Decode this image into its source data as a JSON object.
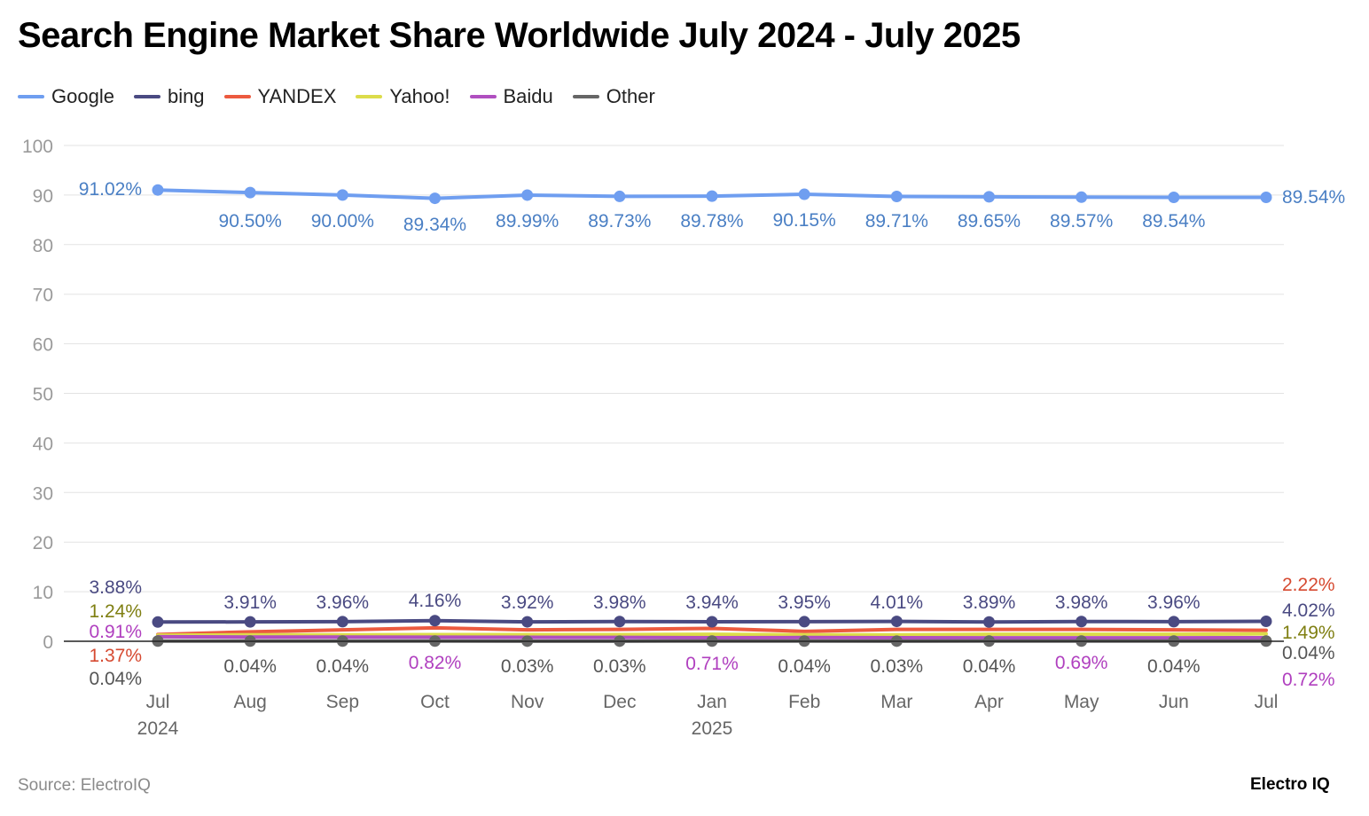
{
  "title": "Search Engine Market Share Worldwide July 2024 - July 2025",
  "source": "Source: ElectroIQ",
  "brand": "Electro IQ",
  "chart_data": {
    "type": "line",
    "title": "Search Engine Market Share Worldwide July 2024 - July 2025",
    "xlabel": "",
    "ylabel": "",
    "ylim": [
      0,
      100
    ],
    "yticks": [
      "0",
      "10",
      "20",
      "30",
      "40",
      "50",
      "60",
      "70",
      "80",
      "90",
      "100"
    ],
    "grid": true,
    "legend_position": "top-left",
    "categories": [
      {
        "month": "Jul",
        "year": "2024"
      },
      {
        "month": "Aug",
        "year": ""
      },
      {
        "month": "Sep",
        "year": ""
      },
      {
        "month": "Oct",
        "year": ""
      },
      {
        "month": "Nov",
        "year": ""
      },
      {
        "month": "Dec",
        "year": ""
      },
      {
        "month": "Jan",
        "year": "2025"
      },
      {
        "month": "Feb",
        "year": ""
      },
      {
        "month": "Mar",
        "year": ""
      },
      {
        "month": "Apr",
        "year": ""
      },
      {
        "month": "May",
        "year": ""
      },
      {
        "month": "Jun",
        "year": ""
      },
      {
        "month": "Jul",
        "year": ""
      }
    ],
    "series": [
      {
        "name": "Google",
        "color": "#6f9ef0",
        "label_color": "#4a7fc4",
        "values": [
          91.02,
          90.5,
          90.0,
          89.34,
          89.99,
          89.73,
          89.78,
          90.15,
          89.71,
          89.65,
          89.57,
          89.54,
          89.54
        ],
        "labels": [
          "91.02%",
          "90.50%",
          "90.00%",
          "89.34%",
          "89.99%",
          "89.73%",
          "89.78%",
          "90.15%",
          "89.71%",
          "89.65%",
          "89.57%",
          "89.54%",
          "89.54%"
        ]
      },
      {
        "name": "bing",
        "color": "#4a4a82",
        "label_color": "#4a4a82",
        "values": [
          3.88,
          3.91,
          3.96,
          4.16,
          3.92,
          3.98,
          3.94,
          3.95,
          4.01,
          3.89,
          3.98,
          3.96,
          4.02
        ],
        "labels": [
          "3.88%",
          "3.91%",
          "3.96%",
          "4.16%",
          "3.92%",
          "3.98%",
          "3.94%",
          "3.95%",
          "4.01%",
          "3.89%",
          "3.98%",
          "3.96%",
          "4.02%"
        ]
      },
      {
        "name": "YANDEX",
        "color": "#ec5a3f",
        "label_color": "#d64a31",
        "values": [
          1.37,
          1.9,
          2.3,
          2.7,
          2.3,
          2.4,
          2.6,
          2.0,
          2.4,
          2.4,
          2.4,
          2.3,
          2.22
        ],
        "labels": [
          "1.37%",
          "",
          "",
          "",
          "",
          "",
          "",
          "",
          "",
          "",
          "",
          "",
          "2.22%"
        ]
      },
      {
        "name": "Yahoo!",
        "color": "#dcdc4a",
        "label_color": "#7f7f12",
        "values": [
          1.24,
          1.3,
          1.3,
          1.35,
          1.35,
          1.35,
          1.4,
          1.3,
          1.3,
          1.4,
          1.4,
          1.4,
          1.49
        ],
        "labels": [
          "1.24%",
          "",
          "",
          "",
          "",
          "",
          "",
          "",
          "",
          "",
          "",
          "",
          "1.49%"
        ]
      },
      {
        "name": "Baidu",
        "color": "#b04fc0",
        "label_color": "#b03fbf",
        "values": [
          0.91,
          0.85,
          0.85,
          0.82,
          0.8,
          0.78,
          0.71,
          0.75,
          0.72,
          0.7,
          0.69,
          0.7,
          0.72
        ],
        "labels": [
          "0.91%",
          "",
          "",
          "0.82%",
          "",
          "",
          "0.71%",
          "",
          "",
          "",
          "0.69%",
          "",
          "0.72%"
        ]
      },
      {
        "name": "Other",
        "color": "#666666",
        "label_color": "#555555",
        "values": [
          0.04,
          0.04,
          0.04,
          0.04,
          0.03,
          0.03,
          0.04,
          0.04,
          0.03,
          0.04,
          0.04,
          0.04,
          0.04
        ],
        "labels": [
          "0.04%",
          "0.04%",
          "0.04%",
          "",
          "0.03%",
          "0.03%",
          "",
          "0.04%",
          "0.03%",
          "0.04%",
          "",
          "0.04%",
          "0.04%"
        ]
      }
    ]
  }
}
